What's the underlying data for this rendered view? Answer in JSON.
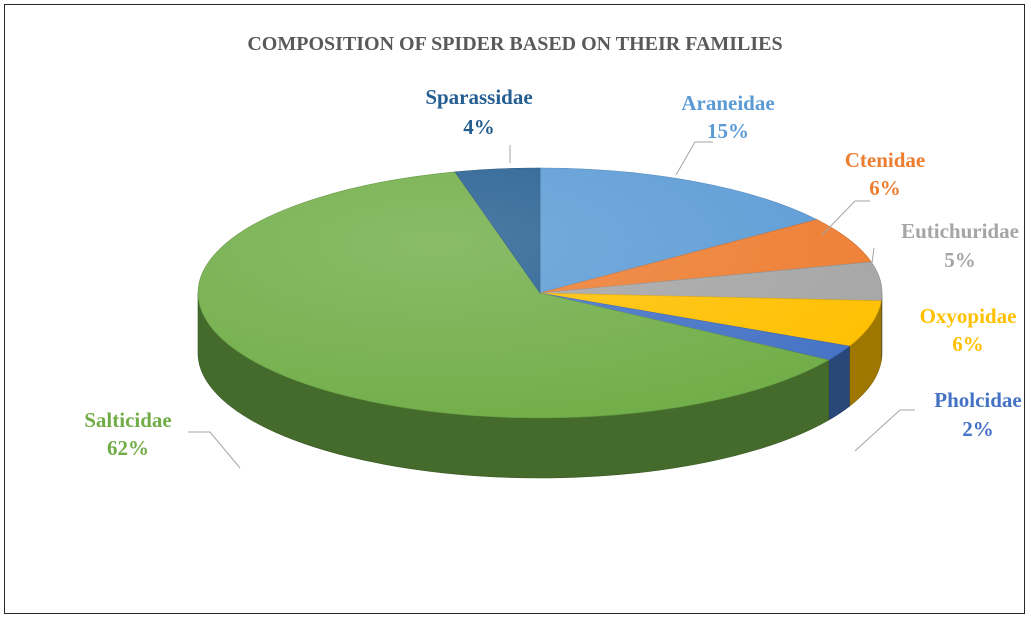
{
  "chart_data": {
    "type": "pie",
    "title": "COMPOSITION OF SPIDER BASED ON THEIR FAMILIES",
    "slices": [
      {
        "label": "Araneidae",
        "value": 15,
        "display": "15%",
        "color": "#5b9bd5"
      },
      {
        "label": "Ctenidae",
        "value": 6,
        "display": "6%",
        "color": "#ed7d31"
      },
      {
        "label": "Eutichuridae",
        "value": 5,
        "display": "5%",
        "color": "#a5a5a5"
      },
      {
        "label": "Oxyopidae",
        "value": 6,
        "display": "6%",
        "color": "#ffc000"
      },
      {
        "label": "Pholcidae",
        "value": 2,
        "display": "2%",
        "color": "#4472c4"
      },
      {
        "label": "Salticidae",
        "value": 62,
        "display": "62%",
        "color": "#70ad47"
      },
      {
        "label": "Sparassidae",
        "value": 4,
        "display": "4%",
        "color": "#255e91"
      }
    ],
    "legend": "none",
    "style": "3d"
  }
}
